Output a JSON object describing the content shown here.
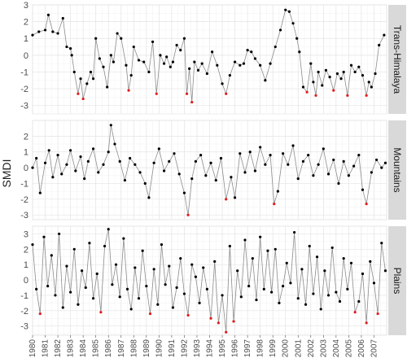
{
  "chart_data": {
    "type": "line",
    "ylabel": "SMDI",
    "x_range": [
      1980,
      2008
    ],
    "x_ticks": [
      "1980",
      "1981",
      "1982",
      "1983",
      "1984",
      "1985",
      "1986",
      "1987",
      "1988",
      "1989",
      "1990",
      "1991",
      "1992",
      "1993",
      "1994",
      "1995",
      "1996",
      "1997",
      "1998",
      "1999",
      "2000",
      "2001",
      "2002",
      "2003",
      "2004",
      "2005",
      "2006",
      "2007"
    ],
    "grid": true,
    "panel_background": "#ffffff",
    "strip_color": "#d9d9d9",
    "line_color": "#8c8c8c",
    "point_color": "#000000",
    "highlight_color": "#e41a1c",
    "highlight_threshold": -2,
    "panels": [
      {
        "name": "Trans-Himalaya",
        "ylim": [
          -3.5,
          3
        ],
        "y_ticks": [
          "3",
          "2",
          "1",
          "0",
          "-1",
          "-2",
          "-3"
        ],
        "x": [
          1980.0,
          1980.5,
          1981.0,
          1981.25,
          1981.6,
          1982.0,
          1982.4,
          1982.7,
          1983.0,
          1983.1,
          1983.3,
          1983.6,
          1983.8,
          1984.0,
          1984.3,
          1984.6,
          1984.8,
          1985.0,
          1985.3,
          1985.6,
          1985.9,
          1986.2,
          1986.4,
          1986.7,
          1987.0,
          1987.4,
          1987.6,
          1987.8,
          1988.0,
          1988.4,
          1988.8,
          1989.2,
          1989.5,
          1989.8,
          1990.1,
          1990.4,
          1990.6,
          1990.9,
          1991.1,
          1991.4,
          1991.7,
          1992.0,
          1992.2,
          1992.4,
          1992.6,
          1992.8,
          1993.1,
          1993.4,
          1993.8,
          1994.2,
          1994.6,
          1995.0,
          1995.3,
          1995.6,
          1996.0,
          1996.4,
          1996.7,
          1997.0,
          1997.3,
          1997.6,
          1998.0,
          1998.4,
          1998.8,
          1999.2,
          1999.6,
          2000.0,
          2000.3,
          2000.6,
          2000.9,
          2001.1,
          2001.4,
          2001.7,
          2002.0,
          2002.2,
          2002.4,
          2002.6,
          2002.9,
          2003.2,
          2003.5,
          2003.8,
          2004.1,
          2004.4,
          2004.6,
          2004.9,
          2005.2,
          2005.5,
          2005.8,
          2006.1,
          2006.4,
          2006.6,
          2006.8,
          2007.1,
          2007.4,
          2007.8
        ],
        "y": [
          1.2,
          1.4,
          1.5,
          2.4,
          1.4,
          1.3,
          2.2,
          0.5,
          0.4,
          0.0,
          -1.0,
          -2.3,
          -1.4,
          -2.6,
          -1.7,
          -1.0,
          -1.4,
          1.0,
          -0.2,
          -0.7,
          -1.9,
          0.0,
          -0.4,
          1.3,
          1.0,
          -0.6,
          -2.1,
          -1.2,
          0.5,
          -0.3,
          -0.4,
          -1.0,
          0.8,
          -2.3,
          0.0,
          -0.5,
          -0.1,
          -0.7,
          -0.4,
          0.6,
          0.3,
          1.0,
          -2.3,
          -0.8,
          -2.8,
          -0.4,
          -0.9,
          -0.5,
          -1.1,
          0.2,
          -0.6,
          -1.7,
          -2.3,
          -1.2,
          -0.4,
          -0.6,
          -0.5,
          0.3,
          0.2,
          -0.2,
          -0.6,
          -1.5,
          -0.5,
          0.5,
          1.5,
          2.7,
          2.6,
          1.9,
          1.0,
          0.2,
          -1.9,
          -2.2,
          -0.5,
          -1.6,
          -2.4,
          -1.0,
          -1.8,
          -0.9,
          -1.3,
          -2.1,
          -1.1,
          -1.4,
          -1.0,
          -2.4,
          -0.6,
          -1.0,
          -0.7,
          -1.2,
          -2.4,
          -1.6,
          -1.9,
          -1.1,
          0.6,
          1.2
        ]
      },
      {
        "name": "Mountains",
        "ylim": [
          -3.3,
          3
        ],
        "y_ticks": [
          "2",
          "1",
          "0",
          "-1",
          "-2",
          "-3"
        ],
        "x": [
          1980.0,
          1980.3,
          1980.6,
          1981.0,
          1981.3,
          1981.6,
          1982.0,
          1982.3,
          1982.7,
          1983.0,
          1983.4,
          1983.8,
          1984.1,
          1984.4,
          1984.8,
          1985.2,
          1985.6,
          1986.0,
          1986.2,
          1986.5,
          1986.9,
          1987.3,
          1987.7,
          1988.1,
          1988.5,
          1988.9,
          1989.2,
          1989.6,
          1990.0,
          1990.4,
          1990.8,
          1991.2,
          1991.6,
          1992.0,
          1992.3,
          1992.6,
          1992.9,
          1993.3,
          1993.7,
          1994.1,
          1994.5,
          1994.9,
          1995.3,
          1995.7,
          1996.0,
          1996.4,
          1996.8,
          1997.2,
          1997.6,
          1998.0,
          1998.4,
          1998.8,
          1999.1,
          1999.4,
          1999.8,
          2000.2,
          2000.6,
          2001.0,
          2001.4,
          2001.8,
          2002.2,
          2002.6,
          2003.0,
          2003.4,
          2003.8,
          2004.2,
          2004.6,
          2005.0,
          2005.4,
          2005.8,
          2006.1,
          2006.4,
          2006.8,
          2007.2,
          2007.6,
          2007.9
        ],
        "y": [
          0.0,
          0.6,
          -1.6,
          0.3,
          1.1,
          -0.6,
          0.8,
          -0.4,
          0.2,
          1.1,
          -0.2,
          0.7,
          -0.7,
          0.4,
          1.2,
          -0.3,
          0.2,
          1.0,
          2.7,
          1.5,
          0.4,
          -0.8,
          0.6,
          0.2,
          -0.3,
          -1.0,
          -1.9,
          0.3,
          1.2,
          -0.2,
          0.4,
          0.9,
          -0.4,
          -1.6,
          -3.0,
          -0.7,
          0.4,
          0.8,
          -0.5,
          0.3,
          -0.8,
          0.6,
          -2.0,
          -0.6,
          -1.9,
          0.9,
          -0.3,
          1.0,
          -0.2,
          1.3,
          0.2,
          0.8,
          -2.3,
          -1.5,
          0.9,
          0.2,
          1.4,
          -0.7,
          0.4,
          0.8,
          -0.5,
          0.2,
          1.2,
          -0.4,
          0.5,
          -1.0,
          0.4,
          -0.5,
          0.1,
          0.8,
          -1.4,
          -2.3,
          -0.3,
          0.5,
          0.0,
          0.3
        ]
      },
      {
        "name": "Plains",
        "ylim": [
          -3.6,
          3.5
        ],
        "y_ticks": [
          "3",
          "2",
          "1",
          "0",
          "-1",
          "-2",
          "-3"
        ],
        "x": [
          1980.0,
          1980.3,
          1980.6,
          1980.9,
          1981.2,
          1981.5,
          1981.8,
          1982.1,
          1982.4,
          1982.7,
          1983.0,
          1983.3,
          1983.6,
          1983.9,
          1984.2,
          1984.5,
          1984.8,
          1985.1,
          1985.4,
          1985.7,
          1986.0,
          1986.3,
          1986.6,
          1986.9,
          1987.2,
          1987.5,
          1987.8,
          1988.1,
          1988.4,
          1988.7,
          1989.0,
          1989.3,
          1989.6,
          1989.9,
          1990.2,
          1990.5,
          1990.8,
          1991.1,
          1991.4,
          1991.7,
          1992.0,
          1992.3,
          1992.6,
          1992.9,
          1993.2,
          1993.5,
          1993.8,
          1994.1,
          1994.4,
          1994.7,
          1995.0,
          1995.3,
          1995.6,
          1995.9,
          1996.2,
          1996.5,
          1996.8,
          1997.1,
          1997.4,
          1997.7,
          1998.0,
          1998.3,
          1998.6,
          1998.9,
          1999.2,
          1999.5,
          1999.8,
          2000.1,
          2000.4,
          2000.7,
          2001.0,
          2001.3,
          2001.6,
          2001.9,
          2002.2,
          2002.5,
          2002.8,
          2003.1,
          2003.4,
          2003.7,
          2004.0,
          2004.3,
          2004.6,
          2004.9,
          2005.2,
          2005.5,
          2005.8,
          2006.1,
          2006.4,
          2006.7,
          2007.0,
          2007.3,
          2007.6,
          2007.9
        ],
        "y": [
          2.3,
          -0.6,
          -2.2,
          2.8,
          -0.4,
          1.6,
          -1.0,
          3.0,
          -1.8,
          0.9,
          -0.8,
          2.0,
          -1.6,
          0.6,
          -0.5,
          2.4,
          -1.2,
          0.4,
          -2.1,
          2.2,
          3.3,
          -0.3,
          1.0,
          -1.1,
          2.7,
          -0.6,
          -1.9,
          0.8,
          -1.2,
          1.9,
          -0.4,
          -2.2,
          0.7,
          -1.6,
          2.3,
          -0.3,
          0.9,
          -1.8,
          -0.5,
          1.4,
          -0.9,
          -2.3,
          1.0,
          0.2,
          -1.5,
          0.8,
          -0.6,
          -2.5,
          1.2,
          -2.8,
          -1.0,
          -3.4,
          2.2,
          -2.7,
          0.6,
          -1.1,
          2.6,
          -0.4,
          1.4,
          -1.3,
          2.8,
          -0.6,
          1.9,
          -0.8,
          2.0,
          -1.5,
          -0.4,
          1.1,
          -0.2,
          3.1,
          -1.2,
          0.7,
          -1.6,
          2.2,
          -0.9,
          1.5,
          -1.9,
          0.6,
          -1.0,
          2.1,
          -0.8,
          -1.4,
          1.4,
          -0.6,
          1.1,
          -2.1,
          -1.4,
          0.4,
          -2.8,
          1.2,
          -0.2,
          -2.2,
          2.4,
          0.6
        ]
      }
    ]
  }
}
